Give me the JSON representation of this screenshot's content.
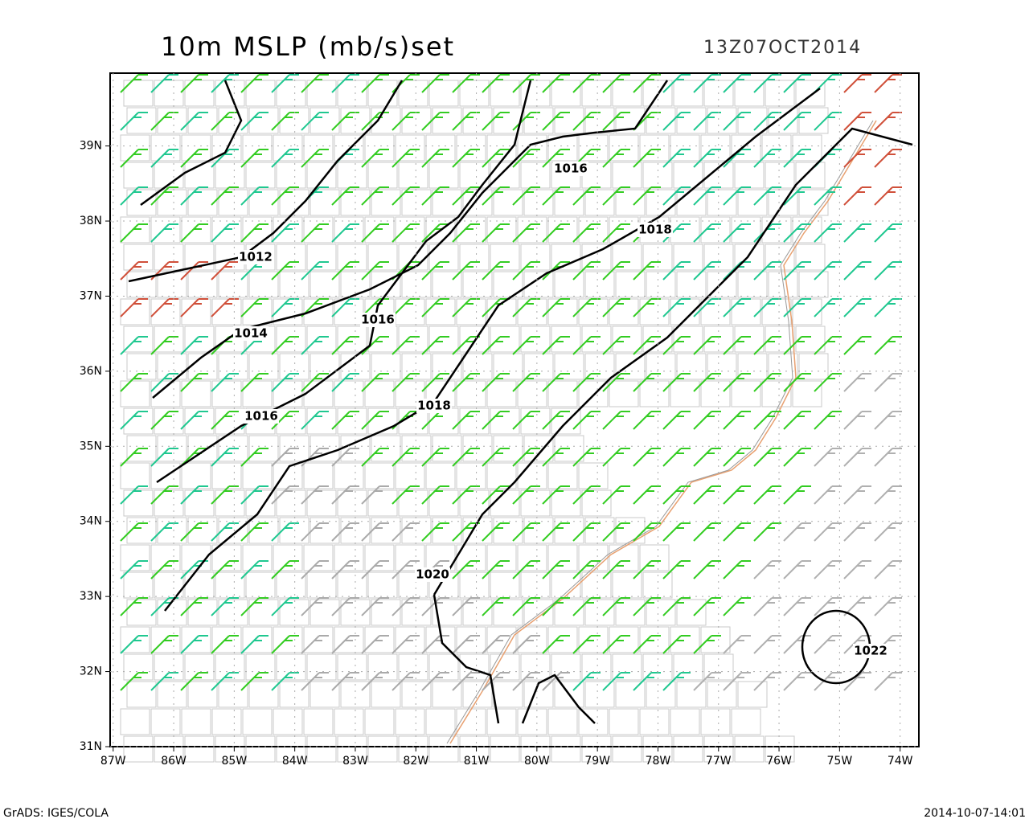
{
  "map": {
    "title": "10m MSLP (mb/s)set",
    "valid_time": "13Z07OCT2014",
    "lon_range": [
      -87.05,
      -73.69
    ],
    "lat_range": [
      31.0,
      39.97
    ],
    "lon_ticks": [
      {
        "value": -87,
        "label": "87W"
      },
      {
        "value": -86,
        "label": "86W"
      },
      {
        "value": -85,
        "label": "85W"
      },
      {
        "value": -84,
        "label": "84W"
      },
      {
        "value": -83,
        "label": "83W"
      },
      {
        "value": -82,
        "label": "82W"
      },
      {
        "value": -81,
        "label": "81W"
      },
      {
        "value": -80,
        "label": "80W"
      },
      {
        "value": -79,
        "label": "79W"
      },
      {
        "value": -78,
        "label": "78W"
      },
      {
        "value": -77,
        "label": "77W"
      },
      {
        "value": -76,
        "label": "76W"
      },
      {
        "value": -75,
        "label": "75W"
      },
      {
        "value": -74,
        "label": "74W"
      }
    ],
    "lat_ticks": [
      {
        "value": 31,
        "label": "31N"
      },
      {
        "value": 32,
        "label": "32N"
      },
      {
        "value": 33,
        "label": "33N"
      },
      {
        "value": 34,
        "label": "34N"
      },
      {
        "value": 35,
        "label": "35N"
      },
      {
        "value": 36,
        "label": "36N"
      },
      {
        "value": 37,
        "label": "37N"
      },
      {
        "value": 38,
        "label": "38N"
      },
      {
        "value": 39,
        "label": "39N"
      }
    ],
    "contour_labels": [
      1012,
      1014,
      1016,
      1016,
      1016,
      1018,
      1018,
      1020,
      1022
    ],
    "footer_left": "GrADS: IGES/COLA",
    "footer_right": "2014-10-07-14:01"
  }
}
